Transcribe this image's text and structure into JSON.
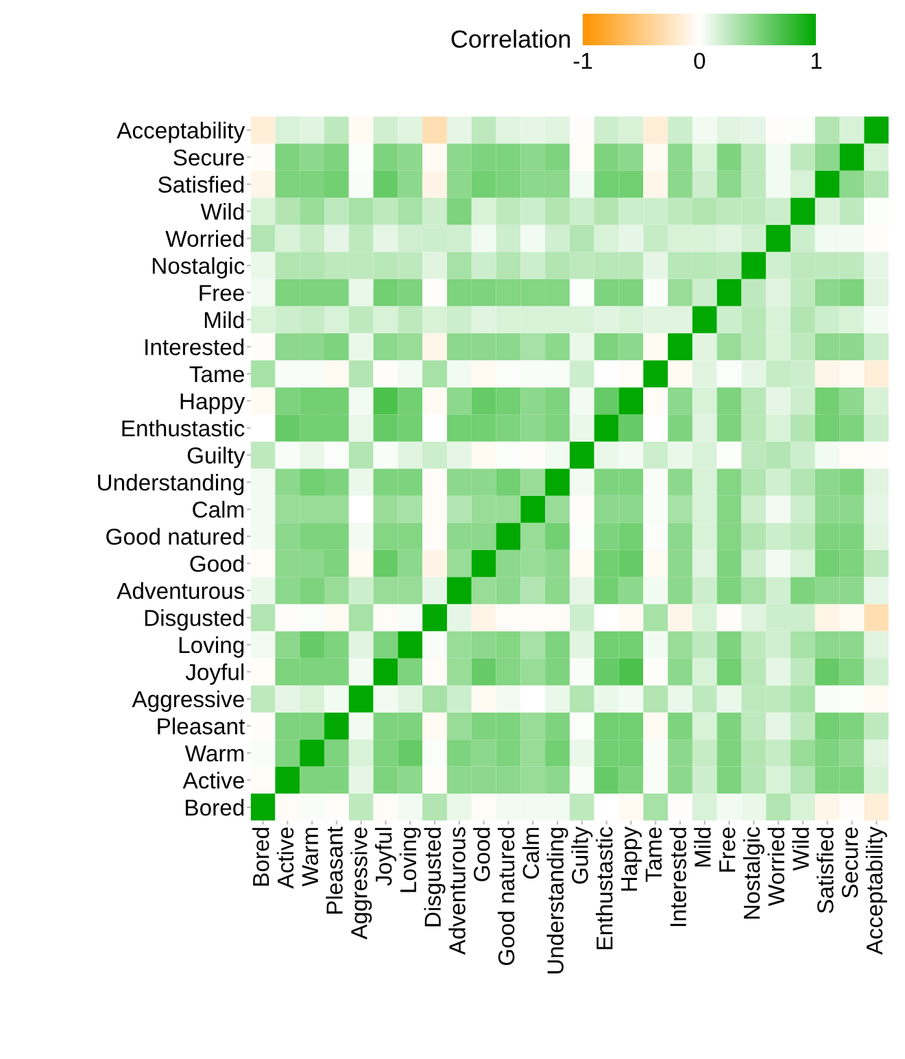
{
  "chart_data": {
    "type": "heatmap",
    "clabel": "Correlation",
    "clim": [
      -1,
      1
    ],
    "cticks": [
      -1,
      0,
      1
    ],
    "colors": [
      "#ff9500",
      "#ffffff",
      "#00a800"
    ],
    "categories": [
      "Bored",
      "Active",
      "Warm",
      "Pleasant",
      "Aggressive",
      "Joyful",
      "Loving",
      "Disgusted",
      "Adventurous",
      "Good",
      "Good natured",
      "Calm",
      "Understanding",
      "Guilty",
      "Enthustastic",
      "Happy",
      "Tame",
      "Interested",
      "Mild",
      "Free",
      "Nostalgic",
      "Worried",
      "Wild",
      "Satisfied",
      "Secure",
      "Acceptability"
    ],
    "y_categories": [
      "Acceptability",
      "Secure",
      "Satisfied",
      "Wild",
      "Worried",
      "Nostalgic",
      "Free",
      "Mild",
      "Interested",
      "Tame",
      "Happy",
      "Enthustastic",
      "Guilty",
      "Understanding",
      "Calm",
      "Good natured",
      "Good",
      "Adventurous",
      "Disgusted",
      "Loving",
      "Joyful",
      "Aggressive",
      "Pleasant",
      "Warm",
      "Active",
      "Bored"
    ],
    "cells": [
      [
        -0.15,
        0.15,
        0.12,
        0.25,
        -0.05,
        0.18,
        0.12,
        -0.3,
        0.1,
        0.25,
        0.12,
        0.1,
        0.12,
        -0.02,
        0.2,
        0.15,
        -0.15,
        0.2,
        0.05,
        0.12,
        0.1,
        -0.02,
        0.02,
        0.3,
        0.15,
        1
      ],
      [
        -0.02,
        0.5,
        0.45,
        0.5,
        0.02,
        0.5,
        0.45,
        -0.05,
        0.45,
        0.5,
        0.5,
        0.45,
        0.5,
        -0.03,
        0.5,
        0.45,
        -0.05,
        0.45,
        0.15,
        0.5,
        0.25,
        0.05,
        0.25,
        0.45,
        1,
        0.15
      ],
      [
        -0.08,
        0.5,
        0.5,
        0.55,
        0.03,
        0.6,
        0.45,
        -0.1,
        0.45,
        0.55,
        0.5,
        0.45,
        0.45,
        0.05,
        0.55,
        0.55,
        -0.08,
        0.45,
        0.2,
        0.45,
        0.25,
        0.05,
        0.15,
        1,
        0.45,
        0.3
      ],
      [
        0.15,
        0.3,
        0.4,
        0.25,
        0.35,
        0.25,
        0.35,
        0.2,
        0.5,
        0.15,
        0.25,
        0.2,
        0.3,
        0.2,
        0.3,
        0.2,
        0.2,
        0.25,
        0.3,
        0.25,
        0.25,
        0.2,
        1,
        0.15,
        0.25,
        0.02
      ],
      [
        0.3,
        0.15,
        0.22,
        0.1,
        0.25,
        0.1,
        0.18,
        0.2,
        0.18,
        0.05,
        0.2,
        0.05,
        0.18,
        0.3,
        0.15,
        0.1,
        0.22,
        0.15,
        0.15,
        0.12,
        0.18,
        1,
        0.2,
        0.05,
        0.05,
        -0.02
      ],
      [
        0.08,
        0.3,
        0.3,
        0.25,
        0.25,
        0.28,
        0.25,
        0.12,
        0.35,
        0.2,
        0.3,
        0.2,
        0.3,
        0.25,
        0.28,
        0.28,
        0.1,
        0.28,
        0.28,
        0.25,
        1,
        0.18,
        0.25,
        0.25,
        0.25,
        0.1
      ],
      [
        0.05,
        0.5,
        0.5,
        0.5,
        0.08,
        0.55,
        0.5,
        -0.02,
        0.5,
        0.5,
        0.48,
        0.48,
        0.48,
        0.02,
        0.5,
        0.5,
        0.02,
        0.4,
        0.2,
        1,
        0.25,
        0.12,
        0.25,
        0.45,
        0.5,
        0.12
      ],
      [
        0.15,
        0.2,
        0.22,
        0.15,
        0.25,
        0.15,
        0.25,
        0.15,
        0.2,
        0.12,
        0.15,
        0.15,
        0.15,
        0.15,
        0.12,
        0.15,
        0.12,
        0.12,
        1,
        0.2,
        0.28,
        0.15,
        0.3,
        0.2,
        0.15,
        0.05
      ],
      [
        -0.02,
        0.45,
        0.45,
        0.5,
        0.08,
        0.45,
        0.4,
        -0.08,
        0.45,
        0.45,
        0.45,
        0.35,
        0.45,
        0.08,
        0.5,
        0.45,
        -0.05,
        1,
        0.12,
        0.4,
        0.28,
        0.15,
        0.25,
        0.45,
        0.45,
        0.2
      ],
      [
        0.35,
        0.03,
        0.03,
        -0.05,
        0.3,
        -0.02,
        0.05,
        0.35,
        0.05,
        -0.05,
        0.02,
        0.03,
        0.03,
        0.2,
        0,
        -0.03,
        1,
        -0.05,
        0.12,
        0.02,
        0.1,
        0.22,
        0.2,
        -0.08,
        -0.05,
        -0.15
      ],
      [
        -0.05,
        0.5,
        0.55,
        0.55,
        0.05,
        0.7,
        0.55,
        -0.05,
        0.45,
        0.6,
        0.55,
        0.45,
        0.5,
        0.05,
        0.6,
        1,
        -0.03,
        0.45,
        0.15,
        0.5,
        0.28,
        0.1,
        0.2,
        0.55,
        0.45,
        0.15
      ],
      [
        0,
        0.6,
        0.55,
        0.55,
        0.08,
        0.6,
        0.55,
        0,
        0.55,
        0.55,
        0.5,
        0.45,
        0.5,
        0.08,
        1,
        0.6,
        0,
        0.5,
        0.12,
        0.5,
        0.28,
        0.15,
        0.3,
        0.55,
        0.5,
        0.2
      ],
      [
        0.25,
        0.03,
        0.08,
        0.02,
        0.3,
        0.03,
        0.12,
        0.2,
        0.1,
        -0.05,
        0.02,
        -0.02,
        0.05,
        1,
        0.08,
        0.05,
        0.2,
        0.08,
        0.15,
        0.02,
        0.25,
        0.3,
        0.2,
        0.05,
        -0.03,
        -0.02
      ],
      [
        0.05,
        0.45,
        0.55,
        0.5,
        0.08,
        0.5,
        0.5,
        -0.03,
        0.45,
        0.45,
        0.55,
        0.4,
        1,
        0.05,
        0.5,
        0.5,
        0.03,
        0.45,
        0.15,
        0.48,
        0.3,
        0.18,
        0.3,
        0.45,
        0.5,
        0.12
      ],
      [
        0.05,
        0.4,
        0.4,
        0.4,
        0,
        0.4,
        0.35,
        -0.03,
        0.3,
        0.4,
        0.4,
        1,
        0.4,
        -0.02,
        0.45,
        0.45,
        0.03,
        0.35,
        0.15,
        0.48,
        0.2,
        0.05,
        0.2,
        0.45,
        0.45,
        0.1
      ],
      [
        0.05,
        0.45,
        0.5,
        0.5,
        0.05,
        0.48,
        0.48,
        -0.03,
        0.45,
        0.45,
        1,
        0.4,
        0.55,
        0.02,
        0.5,
        0.55,
        0.02,
        0.45,
        0.15,
        0.48,
        0.3,
        0.2,
        0.25,
        0.5,
        0.5,
        0.12
      ],
      [
        -0.03,
        0.45,
        0.45,
        0.5,
        -0.05,
        0.6,
        0.45,
        -0.1,
        0.4,
        1,
        0.45,
        0.4,
        0.45,
        -0.05,
        0.55,
        0.6,
        -0.05,
        0.45,
        0.12,
        0.5,
        0.2,
        0.05,
        0.15,
        0.55,
        0.5,
        0.25
      ],
      [
        0.08,
        0.45,
        0.5,
        0.4,
        0.2,
        0.4,
        0.4,
        0.1,
        1,
        0.4,
        0.45,
        0.3,
        0.45,
        0.1,
        0.55,
        0.45,
        0.05,
        0.45,
        0.2,
        0.5,
        0.35,
        0.18,
        0.5,
        0.45,
        0.45,
        0.1
      ],
      [
        0.3,
        -0.02,
        0.02,
        -0.05,
        0.35,
        -0.03,
        0.03,
        1,
        0.1,
        -0.1,
        -0.03,
        -0.03,
        -0.03,
        0.2,
        0,
        -0.05,
        0.35,
        -0.08,
        0.15,
        -0.02,
        0.12,
        0.2,
        0.2,
        -0.1,
        -0.05,
        -0.3
      ],
      [
        0.05,
        0.45,
        0.6,
        0.5,
        0.12,
        0.5,
        1,
        0.03,
        0.4,
        0.45,
        0.48,
        0.35,
        0.5,
        0.12,
        0.55,
        0.55,
        0.05,
        0.4,
        0.25,
        0.5,
        0.25,
        0.18,
        0.35,
        0.45,
        0.45,
        0.12
      ],
      [
        -0.03,
        0.5,
        0.5,
        0.5,
        0.05,
        1,
        0.5,
        -0.03,
        0.4,
        0.6,
        0.48,
        0.4,
        0.5,
        0.03,
        0.6,
        0.7,
        -0.02,
        0.45,
        0.15,
        0.55,
        0.28,
        0.1,
        0.25,
        0.6,
        0.5,
        0.18
      ],
      [
        0.25,
        0.1,
        0.15,
        0.05,
        1,
        0.05,
        0.12,
        0.35,
        0.2,
        -0.05,
        0.05,
        0,
        0.08,
        0.3,
        0.08,
        0.05,
        0.3,
        0.08,
        0.25,
        0.08,
        0.25,
        0.25,
        0.35,
        0.03,
        0.02,
        -0.05
      ],
      [
        -0.02,
        0.5,
        0.5,
        1,
        0.05,
        0.5,
        0.5,
        -0.05,
        0.4,
        0.5,
        0.5,
        0.4,
        0.5,
        0.02,
        0.55,
        0.55,
        -0.05,
        0.5,
        0.15,
        0.5,
        0.25,
        0.1,
        0.25,
        0.55,
        0.5,
        0.25
      ],
      [
        0.03,
        0.5,
        1,
        0.5,
        0.15,
        0.5,
        0.6,
        0.02,
        0.5,
        0.45,
        0.5,
        0.4,
        0.55,
        0.08,
        0.55,
        0.55,
        0.03,
        0.45,
        0.22,
        0.5,
        0.3,
        0.22,
        0.4,
        0.5,
        0.45,
        0.12
      ],
      [
        -0.03,
        1,
        0.5,
        0.5,
        0.1,
        0.5,
        0.45,
        -0.02,
        0.45,
        0.45,
        0.45,
        0.4,
        0.45,
        0.03,
        0.6,
        0.5,
        0.03,
        0.45,
        0.2,
        0.5,
        0.3,
        0.15,
        0.3,
        0.5,
        0.5,
        0.15
      ],
      [
        1,
        -0.03,
        0.03,
        -0.02,
        0.25,
        -0.03,
        0.05,
        0.3,
        0.08,
        -0.03,
        0.05,
        0.05,
        0.05,
        0.25,
        0,
        -0.05,
        0.35,
        -0.02,
        0.15,
        0.05,
        0.08,
        0.3,
        0.15,
        -0.08,
        -0.02,
        -0.15
      ]
    ]
  }
}
